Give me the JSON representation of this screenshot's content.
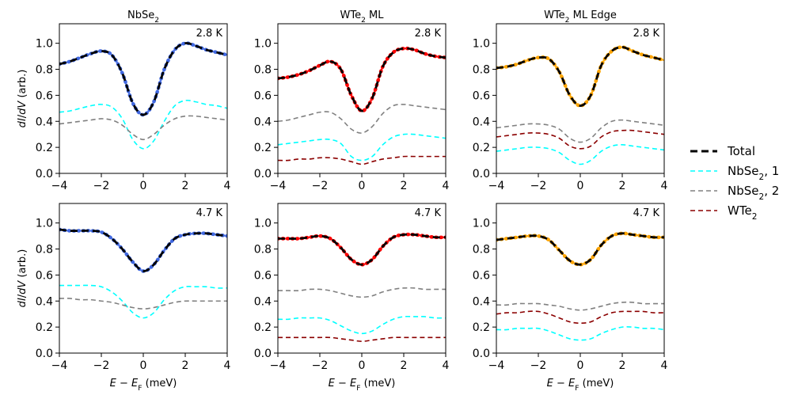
{
  "chart_data": {
    "type": "line",
    "shared": {
      "xlabel": "E − E_F (meV)",
      "ylabel": "dI/dV (arb.)",
      "xlim": [
        -4,
        4
      ],
      "ylim": [
        0,
        1.15
      ],
      "xticks": [
        -4,
        -2,
        0,
        2,
        4
      ],
      "yticks": [
        0.0,
        0.2,
        0.4,
        0.6,
        0.8,
        1.0
      ],
      "ytick_labels": [
        "0.0",
        "0.2",
        "0.4",
        "0.6",
        "0.8",
        "1.0"
      ],
      "x": [
        -4,
        -3.5,
        -3,
        -2.5,
        -2,
        -1.5,
        -1,
        -0.5,
        0,
        0.5,
        1,
        1.5,
        2,
        2.5,
        3,
        3.5,
        4
      ]
    },
    "legend": {
      "placement": "right",
      "entries": [
        {
          "label": "Total",
          "color": "#000000",
          "style": "bold-dashed"
        },
        {
          "label": "NbSe₂, 1",
          "color": "#00ffff",
          "style": "dashed"
        },
        {
          "label": "NbSe₂, 2",
          "color": "#808080",
          "style": "dashed"
        },
        {
          "label": "WTe₂",
          "color": "#8b0000",
          "style": "dashed"
        }
      ]
    },
    "panels": [
      {
        "title": "NbSe₂",
        "temperature": "2.8 K",
        "data_color": "#4169e1",
        "row": 0,
        "col": 0,
        "series": [
          {
            "name": "Data",
            "values": [
              0.84,
              0.86,
              0.89,
              0.92,
              0.94,
              0.91,
              0.77,
              0.54,
              0.45,
              0.55,
              0.8,
              0.95,
              1.0,
              0.98,
              0.95,
              0.93,
              0.91
            ]
          },
          {
            "name": "Total",
            "values": [
              0.84,
              0.86,
              0.89,
              0.92,
              0.94,
              0.91,
              0.77,
              0.54,
              0.45,
              0.55,
              0.8,
              0.95,
              1.0,
              0.98,
              0.95,
              0.93,
              0.91
            ]
          },
          {
            "name": "NbSe₂, 1",
            "values": [
              0.47,
              0.48,
              0.5,
              0.52,
              0.53,
              0.51,
              0.42,
              0.26,
              0.19,
              0.25,
              0.4,
              0.52,
              0.56,
              0.55,
              0.53,
              0.52,
              0.5
            ]
          },
          {
            "name": "NbSe₂, 2",
            "values": [
              0.38,
              0.39,
              0.4,
              0.41,
              0.42,
              0.41,
              0.37,
              0.3,
              0.26,
              0.3,
              0.37,
              0.42,
              0.44,
              0.44,
              0.43,
              0.42,
              0.41
            ]
          }
        ]
      },
      {
        "title": "WTe₂ ML",
        "temperature": "2.8 K",
        "data_color": "#ff0000",
        "row": 0,
        "col": 1,
        "series": [
          {
            "name": "Data",
            "values": [
              0.73,
              0.74,
              0.76,
              0.79,
              0.83,
              0.86,
              0.8,
              0.6,
              0.48,
              0.58,
              0.82,
              0.93,
              0.96,
              0.95,
              0.92,
              0.9,
              0.89
            ]
          },
          {
            "name": "Total",
            "values": [
              0.73,
              0.74,
              0.76,
              0.79,
              0.83,
              0.86,
              0.8,
              0.6,
              0.48,
              0.58,
              0.82,
              0.93,
              0.96,
              0.95,
              0.92,
              0.9,
              0.89
            ]
          },
          {
            "name": "NbSe₂, 2",
            "values": [
              0.4,
              0.41,
              0.43,
              0.45,
              0.47,
              0.47,
              0.42,
              0.34,
              0.31,
              0.36,
              0.46,
              0.52,
              0.53,
              0.52,
              0.51,
              0.5,
              0.49
            ]
          },
          {
            "name": "NbSe₂, 1",
            "values": [
              0.22,
              0.23,
              0.24,
              0.25,
              0.26,
              0.26,
              0.23,
              0.13,
              0.1,
              0.13,
              0.22,
              0.28,
              0.3,
              0.3,
              0.29,
              0.28,
              0.27
            ]
          },
          {
            "name": "WTe₂",
            "values": [
              0.1,
              0.1,
              0.11,
              0.11,
              0.12,
              0.12,
              0.11,
              0.09,
              0.07,
              0.09,
              0.11,
              0.12,
              0.13,
              0.13,
              0.13,
              0.13,
              0.13
            ]
          }
        ]
      },
      {
        "title": "WTe₂ ML Edge",
        "temperature": "2.8 K",
        "data_color": "#ffa500",
        "row": 0,
        "col": 2,
        "series": [
          {
            "name": "Data",
            "values": [
              0.81,
              0.82,
              0.84,
              0.87,
              0.89,
              0.88,
              0.78,
              0.6,
              0.52,
              0.6,
              0.83,
              0.94,
              0.97,
              0.94,
              0.91,
              0.89,
              0.87
            ]
          },
          {
            "name": "Total",
            "values": [
              0.81,
              0.82,
              0.84,
              0.87,
              0.89,
              0.88,
              0.78,
              0.6,
              0.52,
              0.6,
              0.83,
              0.94,
              0.97,
              0.94,
              0.91,
              0.89,
              0.87
            ]
          },
          {
            "name": "NbSe₂, 2",
            "values": [
              0.35,
              0.36,
              0.37,
              0.38,
              0.38,
              0.37,
              0.34,
              0.27,
              0.24,
              0.27,
              0.35,
              0.4,
              0.41,
              0.4,
              0.39,
              0.38,
              0.37
            ]
          },
          {
            "name": "WTe₂",
            "values": [
              0.28,
              0.29,
              0.3,
              0.31,
              0.31,
              0.3,
              0.27,
              0.21,
              0.19,
              0.21,
              0.28,
              0.32,
              0.33,
              0.33,
              0.32,
              0.31,
              0.3
            ]
          },
          {
            "name": "NbSe₂, 1",
            "values": [
              0.17,
              0.18,
              0.19,
              0.2,
              0.2,
              0.19,
              0.16,
              0.1,
              0.07,
              0.1,
              0.17,
              0.21,
              0.22,
              0.21,
              0.2,
              0.19,
              0.18
            ]
          }
        ]
      },
      {
        "title": "",
        "temperature": "4.7 K",
        "data_color": "#4169e1",
        "row": 1,
        "col": 0,
        "series": [
          {
            "name": "Data",
            "values": [
              0.95,
              0.94,
              0.94,
              0.94,
              0.93,
              0.88,
              0.8,
              0.7,
              0.63,
              0.68,
              0.79,
              0.88,
              0.91,
              0.92,
              0.92,
              0.91,
              0.9
            ]
          },
          {
            "name": "Total",
            "values": [
              0.95,
              0.94,
              0.94,
              0.94,
              0.93,
              0.88,
              0.8,
              0.7,
              0.63,
              0.68,
              0.79,
              0.88,
              0.91,
              0.92,
              0.92,
              0.91,
              0.9
            ]
          },
          {
            "name": "NbSe₂, 1",
            "values": [
              0.52,
              0.52,
              0.52,
              0.52,
              0.51,
              0.47,
              0.4,
              0.31,
              0.27,
              0.31,
              0.41,
              0.48,
              0.51,
              0.51,
              0.51,
              0.5,
              0.5
            ]
          },
          {
            "name": "NbSe₂, 2",
            "values": [
              0.42,
              0.42,
              0.41,
              0.41,
              0.4,
              0.39,
              0.37,
              0.35,
              0.34,
              0.35,
              0.37,
              0.39,
              0.4,
              0.4,
              0.4,
              0.4,
              0.4
            ]
          }
        ]
      },
      {
        "title": "",
        "temperature": "4.7 K",
        "data_color": "#ff0000",
        "row": 1,
        "col": 1,
        "series": [
          {
            "name": "Data",
            "values": [
              0.88,
              0.88,
              0.88,
              0.89,
              0.9,
              0.88,
              0.81,
              0.72,
              0.68,
              0.72,
              0.82,
              0.89,
              0.91,
              0.91,
              0.9,
              0.89,
              0.89
            ]
          },
          {
            "name": "Total",
            "values": [
              0.88,
              0.88,
              0.88,
              0.89,
              0.9,
              0.88,
              0.81,
              0.72,
              0.68,
              0.72,
              0.82,
              0.89,
              0.91,
              0.91,
              0.9,
              0.89,
              0.89
            ]
          },
          {
            "name": "NbSe₂, 2",
            "values": [
              0.48,
              0.48,
              0.48,
              0.49,
              0.49,
              0.48,
              0.46,
              0.44,
              0.43,
              0.44,
              0.47,
              0.49,
              0.5,
              0.5,
              0.49,
              0.49,
              0.49
            ]
          },
          {
            "name": "NbSe₂, 1",
            "values": [
              0.26,
              0.26,
              0.27,
              0.27,
              0.27,
              0.25,
              0.21,
              0.17,
              0.15,
              0.17,
              0.22,
              0.26,
              0.28,
              0.28,
              0.28,
              0.27,
              0.27
            ]
          },
          {
            "name": "WTe₂",
            "values": [
              0.12,
              0.12,
              0.12,
              0.12,
              0.12,
              0.12,
              0.11,
              0.1,
              0.09,
              0.1,
              0.11,
              0.12,
              0.12,
              0.12,
              0.12,
              0.12,
              0.12
            ]
          }
        ]
      },
      {
        "title": "",
        "temperature": "4.7 K",
        "data_color": "#ffa500",
        "row": 1,
        "col": 2,
        "series": [
          {
            "name": "Data",
            "values": [
              0.87,
              0.88,
              0.89,
              0.9,
              0.9,
              0.87,
              0.79,
              0.71,
              0.68,
              0.72,
              0.83,
              0.9,
              0.92,
              0.91,
              0.9,
              0.89,
              0.89
            ]
          },
          {
            "name": "Total",
            "values": [
              0.87,
              0.88,
              0.89,
              0.9,
              0.9,
              0.87,
              0.79,
              0.71,
              0.68,
              0.72,
              0.83,
              0.9,
              0.92,
              0.91,
              0.9,
              0.89,
              0.89
            ]
          },
          {
            "name": "NbSe₂, 2",
            "values": [
              0.37,
              0.37,
              0.38,
              0.38,
              0.38,
              0.37,
              0.36,
              0.34,
              0.33,
              0.34,
              0.36,
              0.38,
              0.39,
              0.39,
              0.38,
              0.38,
              0.38
            ]
          },
          {
            "name": "WTe₂",
            "values": [
              0.3,
              0.31,
              0.31,
              0.32,
              0.32,
              0.3,
              0.27,
              0.24,
              0.23,
              0.24,
              0.28,
              0.31,
              0.32,
              0.32,
              0.32,
              0.31,
              0.31
            ]
          },
          {
            "name": "NbSe₂, 1",
            "values": [
              0.18,
              0.18,
              0.19,
              0.19,
              0.19,
              0.17,
              0.14,
              0.11,
              0.1,
              0.11,
              0.15,
              0.18,
              0.2,
              0.2,
              0.19,
              0.19,
              0.18
            ]
          }
        ]
      }
    ]
  }
}
